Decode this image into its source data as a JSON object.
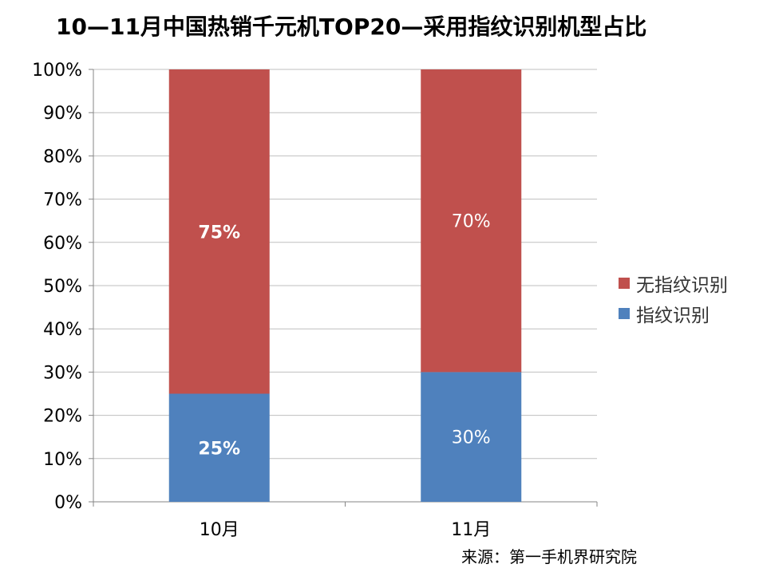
{
  "title": "10—11月中国热销千元机TOP20—采用指纹识别机型占比",
  "source": "来源：第一手机界研究院",
  "colors": {
    "series1": "#4F81BD",
    "series2": "#C0504D",
    "grid": "#BFBFBF",
    "axis": "#868686"
  },
  "chart_data": {
    "type": "bar",
    "stacked": "percent",
    "categories": [
      "10月",
      "11月"
    ],
    "series": [
      {
        "name": "指纹识别",
        "values": [
          25,
          30
        ],
        "labels": [
          "25%",
          "30%"
        ],
        "color": "#4F81BD"
      },
      {
        "name": "无指纹识别",
        "values": [
          75,
          70
        ],
        "labels": [
          "75%",
          "70%"
        ],
        "color": "#C0504D"
      }
    ],
    "ylim": [
      0,
      100
    ],
    "yticks": [
      "0%",
      "10%",
      "20%",
      "30%",
      "40%",
      "50%",
      "60%",
      "70%",
      "80%",
      "90%",
      "100%"
    ],
    "grid": true,
    "legend": "right",
    "legend_order": [
      "无指纹识别",
      "指纹识别"
    ]
  }
}
